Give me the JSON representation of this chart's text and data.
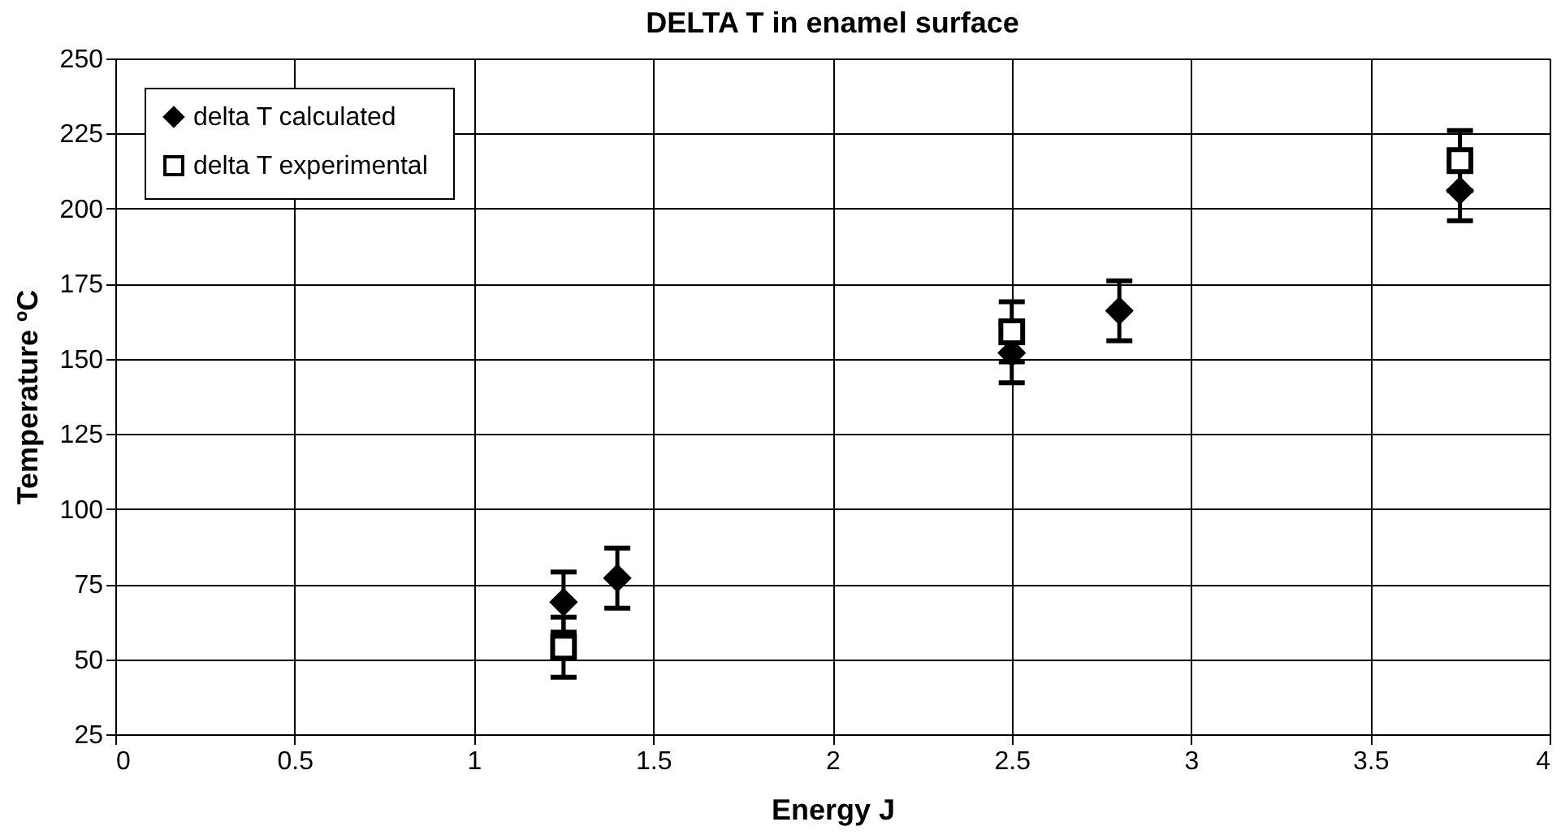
{
  "chart_data": {
    "type": "scatter",
    "title": "DELTA T in enamel surface",
    "xlabel": "Energy J",
    "ylabel": "Temperature ºC",
    "xlim": [
      0,
      4
    ],
    "xticks": [
      0,
      0.5,
      1,
      1.5,
      2,
      2.5,
      3,
      3.5,
      4
    ],
    "ylim": [
      25,
      250
    ],
    "yticks": [
      25,
      50,
      75,
      100,
      125,
      150,
      175,
      200,
      225,
      250
    ],
    "grid": true,
    "legend": "top left",
    "series": [
      {
        "name": "delta T  calculated",
        "color": "#000000",
        "marker": "diamond",
        "x": [
          1.25,
          1.4,
          2.5,
          2.8,
          3.75
        ],
        "values": [
          69,
          77,
          152,
          166,
          206
        ],
        "errors": [
          10,
          10,
          10,
          10,
          10
        ]
      },
      {
        "name": "delta T  experimental",
        "color": "#000000",
        "marker": "square",
        "x": [
          1.25,
          2.5,
          3.75
        ],
        "values": [
          54,
          159,
          216
        ],
        "errors": [
          10,
          10,
          10
        ]
      }
    ]
  }
}
